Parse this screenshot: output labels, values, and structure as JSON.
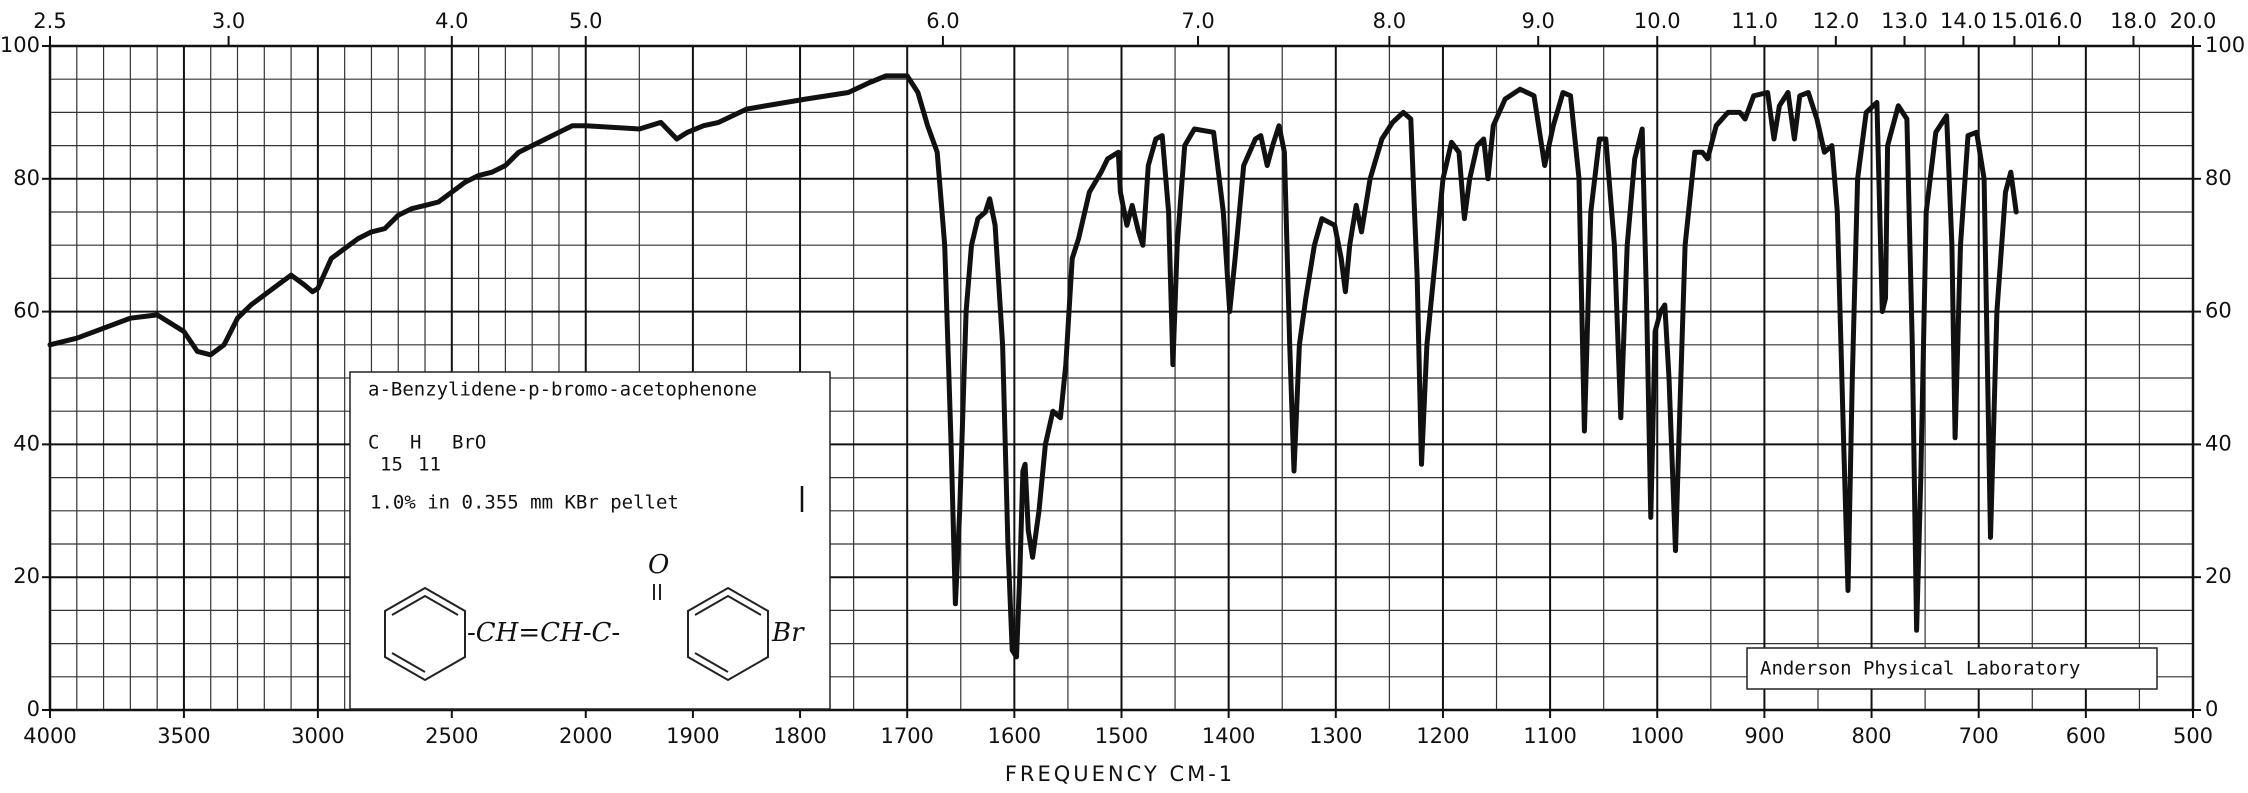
{
  "chart_data": {
    "type": "line",
    "xlabel": "FREQUENCY CM-1",
    "color": "#111111",
    "xlim": [
      4000,
      500
    ],
    "xscale": {
      "break": 2000,
      "compression": 4
    },
    "xticks": [
      4000,
      3500,
      3000,
      2500,
      2000,
      1900,
      1800,
      1700,
      1600,
      1500,
      1400,
      1300,
      1200,
      1100,
      1000,
      900,
      800,
      700,
      600,
      500
    ],
    "xminor": [
      3900,
      3800,
      3700,
      3600,
      3400,
      3300,
      3200,
      3100,
      2900,
      2800,
      2700,
      2600,
      2400,
      2300,
      2200,
      2100,
      1950,
      1850,
      1750,
      1650,
      1550,
      1450,
      1350,
      1250,
      1150,
      1050,
      950,
      850,
      750,
      650,
      550
    ],
    "x2_transform": {
      "type": "reciprocal",
      "factor": 10000
    },
    "x2ticks": [
      2.5,
      {
        "value": 3,
        "label": "3.0"
      },
      {
        "value": 4,
        "label": "4.0"
      },
      {
        "value": 5,
        "label": "5.0"
      },
      {
        "value": 6,
        "label": "6.0"
      },
      {
        "value": 7,
        "label": "7.0"
      },
      {
        "value": 8,
        "label": "8.0"
      },
      {
        "value": 9,
        "label": "9.0"
      },
      {
        "value": 10,
        "label": "10.0"
      },
      {
        "value": 11,
        "label": "11.0"
      },
      {
        "value": 12,
        "label": "12.0"
      },
      {
        "value": 13,
        "label": "13.0"
      },
      {
        "value": 14,
        "label": "14.0"
      },
      {
        "value": 15,
        "label": "15.0"
      },
      {
        "value": 16,
        "label": "16.0"
      },
      {
        "value": 18,
        "label": "18.0"
      },
      {
        "value": 20,
        "label": "20.0"
      }
    ],
    "ylim": [
      0,
      100
    ],
    "yticks": [
      0,
      20,
      40,
      60,
      80,
      100
    ],
    "yminor": [
      5,
      10,
      15,
      25,
      30,
      35,
      45,
      50,
      55,
      65,
      70,
      75,
      85,
      90,
      95
    ],
    "grid": true,
    "x": [
      4000,
      3900,
      3800,
      3700,
      3600,
      3500,
      3450,
      3400,
      3350,
      3300,
      3250,
      3200,
      3150,
      3100,
      3050,
      3020,
      3000,
      2950,
      2900,
      2850,
      2800,
      2750,
      2700,
      2650,
      2600,
      2550,
      2500,
      2450,
      2400,
      2350,
      2300,
      2250,
      2200,
      2150,
      2100,
      2050,
      2000,
      1950,
      1930,
      1915,
      1905,
      1890,
      1876,
      1850,
      1795,
      1755,
      1735,
      1720,
      1700,
      1690,
      1681,
      1672,
      1665,
      1659,
      1655,
      1651,
      1645,
      1640,
      1634,
      1627,
      1623,
      1618,
      1611,
      1606,
      1602,
      1598,
      1595,
      1592,
      1590,
      1587,
      1583,
      1577,
      1571,
      1564,
      1557,
      1552,
      1546,
      1540,
      1530,
      1519,
      1513,
      1503,
      1501,
      1495,
      1490,
      1484,
      1480,
      1475,
      1468,
      1462,
      1456,
      1452,
      1448,
      1441,
      1432,
      1414,
      1405,
      1399,
      1394,
      1386,
      1375,
      1370,
      1364,
      1359,
      1353,
      1348,
      1343,
      1339,
      1334,
      1328,
      1320,
      1313,
      1301,
      1295,
      1291,
      1287,
      1281,
      1276,
      1268,
      1257,
      1247,
      1237,
      1230,
      1224,
      1220,
      1215,
      1207,
      1200,
      1192,
      1185,
      1180,
      1175,
      1168,
      1162,
      1158,
      1153,
      1142,
      1128,
      1115,
      1105,
      1097,
      1088,
      1081,
      1073,
      1068,
      1062,
      1054,
      1048,
      1040,
      1034,
      1028,
      1021,
      1014,
      1010,
      1006,
      1002,
      997,
      993,
      989,
      983,
      979,
      974,
      965,
      958,
      953,
      945,
      934,
      923,
      918,
      910,
      897,
      891,
      886,
      878,
      872,
      867,
      859,
      851,
      844,
      837,
      832,
      826,
      822,
      818,
      813,
      805,
      795,
      790,
      787,
      785,
      775,
      767,
      762,
      758,
      754,
      749,
      740,
      730,
      725,
      722,
      717,
      710,
      702,
      695,
      689,
      683,
      675,
      670,
      665
    ],
    "values": [
      55,
      56,
      57.5,
      59,
      59.5,
      57,
      54,
      53.5,
      55,
      59,
      61,
      62.5,
      64,
      65.5,
      64,
      63,
      63.5,
      68,
      69.5,
      71,
      72,
      72.5,
      74.5,
      75.5,
      76,
      76.5,
      78,
      79.5,
      80.5,
      81,
      82,
      84,
      85,
      86,
      87,
      88,
      88,
      87.5,
      88.5,
      86,
      87,
      88,
      88.5,
      90.5,
      92,
      93,
      94.5,
      95.5,
      95.5,
      93,
      88,
      84,
      70,
      40,
      16,
      30,
      60,
      70,
      74,
      75,
      77,
      73,
      55,
      25,
      9,
      8,
      20,
      36,
      37,
      27,
      23,
      30,
      40,
      45,
      44,
      52,
      68,
      71,
      78,
      81,
      83,
      84,
      78,
      73,
      76,
      72,
      70,
      82,
      86,
      86.5,
      75,
      52,
      70,
      85,
      87.5,
      87,
      75,
      60,
      68,
      82,
      86,
      86.5,
      82,
      85,
      88,
      84,
      55,
      36,
      55,
      62,
      70,
      74,
      73,
      68,
      63,
      70,
      76,
      72,
      80,
      86,
      88.5,
      90,
      89,
      65,
      37,
      55,
      68,
      80,
      85.5,
      84,
      74,
      80,
      85,
      86,
      80,
      88,
      92,
      93.5,
      92.5,
      82,
      88,
      93,
      92.5,
      80,
      42,
      75,
      86,
      86,
      70,
      44,
      70,
      83,
      87.5,
      62,
      29,
      57,
      60,
      61,
      50,
      24,
      45,
      70,
      84,
      84,
      83,
      88,
      90,
      90,
      89,
      92.5,
      93,
      86,
      91,
      93,
      86,
      92.5,
      93,
      89,
      84,
      85,
      75,
      40,
      18,
      50,
      80,
      90,
      91.5,
      60,
      62,
      85,
      91,
      89,
      55,
      12,
      35,
      75,
      87,
      89.5,
      70,
      41,
      70,
      86.5,
      87,
      80,
      26,
      60,
      78,
      81,
      75
    ],
    "annotations": {
      "compound": "a-Benzylidene-p-bromo-acetophenone",
      "formula": [
        "C",
        "H",
        "BrO"
      ],
      "formula_subscripts": [
        "15",
        "11"
      ],
      "conditions": "1.0% in 0.355 mm KBr pellet",
      "structure": {
        "chain": "-CH=CH-C-",
        "oxygen": "O",
        "substituent": "Br"
      },
      "lab": "Anderson Physical Laboratory"
    }
  }
}
